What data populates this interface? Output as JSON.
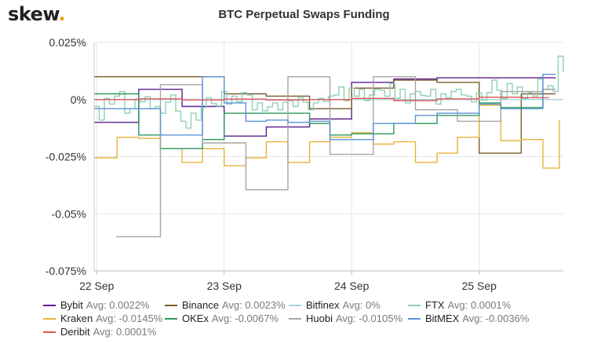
{
  "brand": {
    "logo_text": "skew",
    "logo_dot": "."
  },
  "chart_data": {
    "type": "line",
    "title": "BTC Perpetual Swaps Funding",
    "xlabel": "",
    "ylabel": "",
    "x_unit": "days (22 Sep 00:00 = 22)",
    "x_ticks": [
      {
        "value": 22,
        "label": "22 Sep"
      },
      {
        "value": 23,
        "label": "23 Sep"
      },
      {
        "value": 24,
        "label": "24 Sep"
      },
      {
        "value": 25,
        "label": "25 Sep"
      }
    ],
    "xlim": [
      21.98,
      25.66
    ],
    "y_ticks": [
      {
        "value": 0.025,
        "label": "0.025%"
      },
      {
        "value": 0,
        "label": "0%"
      },
      {
        "value": -0.025,
        "label": "-0.025%"
      },
      {
        "value": -0.05,
        "label": "-0.05%"
      },
      {
        "value": -0.075,
        "label": "-0.075%"
      }
    ],
    "ylim": [
      -0.075,
      0.025
    ],
    "grid": true,
    "legend_position": "bottom",
    "series": [
      {
        "name": "Bybit",
        "avg": "Avg: 0.0022%",
        "color": "#5b1f8e",
        "step": true,
        "points": [
          [
            21.98,
            -0.01
          ],
          [
            22.33,
            0.0045
          ],
          [
            22.67,
            -0.003
          ],
          [
            23.0,
            -0.016
          ],
          [
            23.33,
            -0.012
          ],
          [
            23.67,
            -0.0085
          ],
          [
            24.0,
            0.0075
          ],
          [
            24.33,
            0.009
          ],
          [
            24.67,
            0.0095
          ],
          [
            25.0,
            0.0095
          ],
          [
            25.33,
            0.0095
          ],
          [
            25.6,
            0.0095
          ]
        ]
      },
      {
        "name": "Binance",
        "avg": "Avg: 0.0023%",
        "color": "#7b5a2b",
        "step": true,
        "points": [
          [
            21.98,
            0.01
          ],
          [
            22.33,
            0.01
          ],
          [
            22.67,
            0.01
          ],
          [
            23.0,
            0.0025
          ],
          [
            23.33,
            0.0015
          ],
          [
            23.67,
            -0.004
          ],
          [
            24.0,
            0.005
          ],
          [
            24.33,
            0.0085
          ],
          [
            24.67,
            0.0075
          ],
          [
            25.0,
            -0.0235
          ],
          [
            25.33,
            0.0025
          ],
          [
            25.6,
            0.0025
          ]
        ]
      },
      {
        "name": "Bitfinex",
        "avg": "Avg: 0%",
        "color": "#a9d3dc",
        "step": true,
        "points": [
          [
            21.98,
            0.0
          ],
          [
            25.66,
            0.0
          ]
        ]
      },
      {
        "name": "FTX",
        "avg": "Avg: 0.0001%",
        "color": "#8fcfb7",
        "step": true,
        "points": [
          [
            21.98,
            -0.003
          ],
          [
            22.02,
            -0.009
          ],
          [
            22.06,
            0.0005
          ],
          [
            22.1,
            -0.002
          ],
          [
            22.14,
            0.0015
          ],
          [
            22.18,
            0.0035
          ],
          [
            22.22,
            -0.006
          ],
          [
            22.26,
            -0.004
          ],
          [
            22.3,
            0.0002
          ],
          [
            22.34,
            -0.001
          ],
          [
            22.38,
            0.0012
          ],
          [
            22.42,
            -0.004
          ],
          [
            22.46,
            -0.003
          ],
          [
            22.5,
            -0.006
          ],
          [
            22.54,
            -0.0012
          ],
          [
            22.58,
            0.002
          ],
          [
            22.62,
            -0.005
          ],
          [
            22.66,
            -0.0095
          ],
          [
            22.7,
            -0.0125
          ],
          [
            22.74,
            -0.006
          ],
          [
            22.78,
            -0.009
          ],
          [
            22.82,
            -0.0035
          ],
          [
            22.86,
            0.0008
          ],
          [
            22.9,
            -0.0018
          ],
          [
            22.94,
            -0.0028
          ],
          [
            22.98,
            0.0035
          ],
          [
            23.02,
            -0.002
          ],
          [
            23.06,
            0.0015
          ],
          [
            23.1,
            -0.001
          ],
          [
            23.14,
            0.003
          ],
          [
            23.18,
            0.002
          ],
          [
            23.22,
            -0.0045
          ],
          [
            23.26,
            -0.0015
          ],
          [
            23.3,
            -0.005
          ],
          [
            23.34,
            -0.0032
          ],
          [
            23.38,
            -0.0015
          ],
          [
            23.42,
            -0.0045
          ],
          [
            23.46,
            -0.0012
          ],
          [
            23.5,
            -0.0005
          ],
          [
            23.54,
            -0.003
          ],
          [
            23.58,
            0.0008
          ],
          [
            23.62,
            -0.0012
          ],
          [
            23.66,
            -0.0045
          ],
          [
            23.7,
            -0.0015
          ],
          [
            23.74,
            0.0005
          ],
          [
            23.78,
            -0.0008
          ],
          [
            23.82,
            0.0015
          ],
          [
            23.86,
            0.002
          ],
          [
            23.9,
            0.0055
          ],
          [
            23.94,
            -0.0005
          ],
          [
            23.98,
            0.005
          ],
          [
            24.02,
            0.0015
          ],
          [
            24.06,
            0.0045
          ],
          [
            24.1,
            -0.0005
          ],
          [
            24.14,
            0.002
          ],
          [
            24.18,
            0.0045
          ],
          [
            24.22,
            0.004
          ],
          [
            24.26,
            0.0015
          ],
          [
            24.3,
            0.007
          ],
          [
            24.34,
            0.0005
          ],
          [
            24.38,
            0.0045
          ],
          [
            24.42,
            -0.0015
          ],
          [
            24.46,
            0.0025
          ],
          [
            24.5,
            0.0035
          ],
          [
            24.54,
            0.0018
          ],
          [
            24.58,
            0.0015
          ],
          [
            24.62,
            0.0045
          ],
          [
            24.66,
            -0.002
          ],
          [
            24.7,
            0.0025
          ],
          [
            24.74,
            0.0008
          ],
          [
            24.78,
            0.0035
          ],
          [
            24.82,
            0.0045
          ],
          [
            24.86,
            0.002
          ],
          [
            24.9,
            0.0015
          ],
          [
            24.94,
            -0.001
          ],
          [
            24.98,
            0.0028
          ],
          [
            25.02,
            -0.0002
          ],
          [
            25.06,
            0.003
          ],
          [
            25.1,
            0.0085
          ],
          [
            25.14,
            0.004
          ],
          [
            25.18,
            0.0005
          ],
          [
            25.22,
            0.007
          ],
          [
            25.26,
            0.0025
          ],
          [
            25.3,
            0.0055
          ],
          [
            25.34,
            0.0005
          ],
          [
            25.38,
            0.003
          ],
          [
            25.42,
            0.0015
          ],
          [
            25.46,
            0.009
          ],
          [
            25.5,
            0.0045
          ],
          [
            25.54,
            0.006
          ],
          [
            25.58,
            0.0035
          ],
          [
            25.62,
            0.019
          ],
          [
            25.66,
            0.012
          ]
        ]
      },
      {
        "name": "Kraken",
        "avg": "Avg: -0.0145%",
        "color": "#e8b23a",
        "step": true,
        "points": [
          [
            21.98,
            -0.0255
          ],
          [
            22.16,
            -0.0165
          ],
          [
            22.33,
            -0.017
          ],
          [
            22.5,
            -0.0215
          ],
          [
            22.67,
            -0.0275
          ],
          [
            22.83,
            -0.0215
          ],
          [
            23.0,
            -0.029
          ],
          [
            23.17,
            -0.0255
          ],
          [
            23.33,
            -0.0185
          ],
          [
            23.5,
            -0.0275
          ],
          [
            23.67,
            -0.0185
          ],
          [
            23.83,
            -0.0165
          ],
          [
            24.0,
            -0.0145
          ],
          [
            24.17,
            -0.0195
          ],
          [
            24.33,
            -0.0185
          ],
          [
            24.5,
            -0.0275
          ],
          [
            24.67,
            -0.0235
          ],
          [
            24.83,
            -0.0165
          ],
          [
            25.0,
            -0.0025
          ],
          [
            25.17,
            -0.018
          ],
          [
            25.33,
            -0.0175
          ],
          [
            25.5,
            -0.03
          ],
          [
            25.63,
            -0.009
          ]
        ]
      },
      {
        "name": "OKEx",
        "avg": "Avg: -0.0067%",
        "color": "#2a9a5c",
        "step": true,
        "points": [
          [
            21.98,
            0.0025
          ],
          [
            22.33,
            -0.0155
          ],
          [
            22.5,
            -0.0215
          ],
          [
            22.83,
            -0.0175
          ],
          [
            23.0,
            -0.006
          ],
          [
            23.33,
            -0.006
          ],
          [
            23.67,
            -0.0105
          ],
          [
            23.83,
            -0.0155
          ],
          [
            24.0,
            -0.015
          ],
          [
            24.33,
            -0.0105
          ],
          [
            24.67,
            -0.007
          ],
          [
            25.0,
            -0.0015
          ],
          [
            25.17,
            -0.0035
          ],
          [
            25.33,
            -0.0035
          ],
          [
            25.5,
            0.0045
          ],
          [
            25.6,
            0.0045
          ]
        ]
      },
      {
        "name": "Huobi",
        "avg": "Avg: -0.0105%",
        "color": "#a6a6a6",
        "step": true,
        "points": [
          [
            22.15,
            -0.06
          ],
          [
            22.5,
            0.0065
          ],
          [
            22.83,
            -0.019
          ],
          [
            23.17,
            -0.0395
          ],
          [
            23.5,
            0.01
          ],
          [
            23.83,
            -0.024
          ],
          [
            24.17,
            0.01
          ],
          [
            24.5,
            -0.0045
          ],
          [
            24.83,
            -0.0095
          ],
          [
            25.17,
            0.0035
          ],
          [
            25.5,
            0.0045
          ],
          [
            25.6,
            0.0045
          ]
        ]
      },
      {
        "name": "BitMEX",
        "avg": "Avg: -0.0036%",
        "color": "#5a92d6",
        "step": true,
        "points": [
          [
            21.98,
            -0.004
          ],
          [
            22.2,
            -0.004
          ],
          [
            22.5,
            -0.0155
          ],
          [
            22.83,
            0.01
          ],
          [
            23.0,
            -0.0015
          ],
          [
            23.17,
            -0.0095
          ],
          [
            23.33,
            -0.009
          ],
          [
            23.5,
            -0.01
          ],
          [
            23.67,
            -0.0095
          ],
          [
            23.83,
            -0.0175
          ],
          [
            24.17,
            -0.0105
          ],
          [
            24.5,
            -0.007
          ],
          [
            24.67,
            -0.006
          ],
          [
            25.0,
            -0.002
          ],
          [
            25.17,
            -0.004
          ],
          [
            25.5,
            0.011
          ],
          [
            25.6,
            0.011
          ]
        ]
      },
      {
        "name": "Deribit",
        "avg": "Avg: 0.0001%",
        "color": "#e05555",
        "step": true,
        "points": [
          [
            21.98,
            0.0
          ],
          [
            22.33,
            0.0003
          ],
          [
            22.67,
            -0.0002
          ],
          [
            23.0,
            0.0002
          ],
          [
            23.33,
            -0.0002
          ],
          [
            23.67,
            0.0
          ],
          [
            24.0,
            0.0005
          ],
          [
            24.33,
            -0.0005
          ],
          [
            24.67,
            0.0003
          ],
          [
            25.0,
            0.001
          ],
          [
            25.33,
            0.0008
          ],
          [
            25.55,
            0.0008
          ]
        ]
      }
    ]
  }
}
